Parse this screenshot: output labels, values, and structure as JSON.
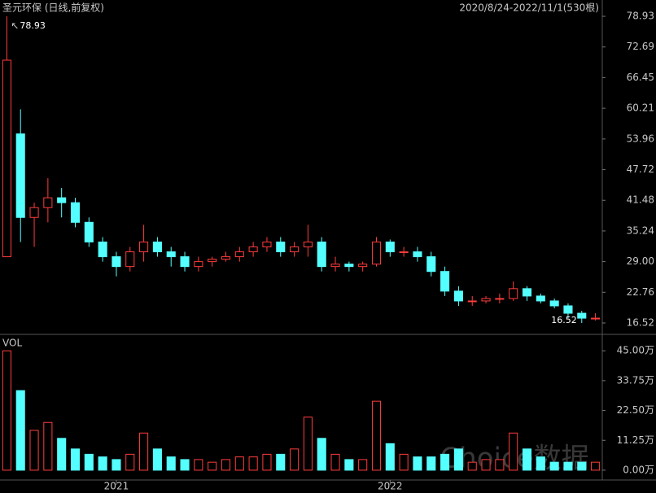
{
  "chart_data": [
    {
      "type": "candlestick",
      "title": "圣元环保 (日线,前复权)",
      "subtitle": "2020/8/24-2022/11/1(530根)",
      "up_color": "#ff3c3c",
      "down_color": "#54ffff",
      "categories": [
        null,
        null,
        null,
        null,
        null,
        null,
        null,
        null,
        "2021",
        null,
        null,
        null,
        null,
        null,
        null,
        null,
        null,
        null,
        null,
        null,
        null,
        null,
        null,
        null,
        null,
        null,
        null,
        null,
        "2022",
        null,
        null,
        null,
        null,
        null,
        null,
        null,
        null,
        null,
        null,
        null,
        null,
        null,
        null,
        null
      ],
      "open": [
        30,
        55,
        38,
        40,
        42,
        41,
        37,
        33,
        30,
        28,
        31,
        33,
        31,
        30,
        28,
        29,
        29.5,
        30,
        31,
        32,
        33,
        31,
        32,
        33,
        28,
        28.5,
        28,
        28.5,
        33,
        31,
        31,
        30,
        27,
        23,
        21,
        21,
        21.5,
        21.5,
        23.5,
        22,
        21,
        20,
        18.5,
        17.5
      ],
      "high": [
        78.93,
        60,
        41,
        46,
        44,
        42,
        38,
        34,
        31,
        32,
        36.5,
        34,
        32,
        31,
        30,
        30,
        31,
        32,
        33,
        34,
        34,
        33,
        36.5,
        34,
        30,
        29,
        29,
        34,
        33.5,
        32,
        32,
        31,
        28,
        24,
        22,
        22,
        22.5,
        25,
        24,
        22.5,
        21.5,
        20.5,
        19,
        18.5
      ],
      "low": [
        30,
        33,
        32,
        37,
        38,
        36,
        32,
        29,
        26,
        27,
        29,
        30,
        28,
        27,
        27,
        28,
        29,
        29,
        30,
        31,
        30,
        30,
        30,
        27,
        27,
        27,
        27,
        28,
        30,
        30,
        29,
        26,
        22,
        20,
        20,
        20.5,
        20.5,
        21,
        21,
        20.5,
        19.5,
        17.5,
        16.52,
        17
      ],
      "close": [
        70,
        38,
        40,
        42,
        41,
        37,
        33,
        30,
        28,
        31,
        33,
        31,
        30,
        28,
        29,
        29.5,
        30,
        31,
        32,
        33,
        31,
        32,
        33,
        28,
        28.5,
        28,
        28.5,
        33,
        31,
        31,
        30,
        27,
        23,
        21,
        21,
        21.5,
        21.5,
        23.5,
        22,
        21,
        20,
        18.5,
        17.5,
        17.5
      ],
      "ylim": [
        14.2,
        82.25
      ],
      "yticks": [
        78.93,
        72.69,
        66.45,
        60.21,
        53.96,
        47.72,
        41.48,
        35.24,
        {
          "value": 29,
          "label": "29.00"
        },
        22.76,
        16.52
      ]
    },
    {
      "type": "bar",
      "title": "VOL",
      "values": [
        45,
        30,
        15,
        18,
        12,
        8,
        6,
        5,
        4,
        6,
        14,
        8,
        5,
        4,
        4,
        3,
        4,
        5,
        5,
        6,
        6,
        8,
        20,
        12,
        6,
        4,
        4,
        26,
        10,
        6,
        5,
        5,
        6,
        8,
        3,
        4,
        4,
        14,
        8,
        5,
        3,
        3,
        3,
        3
      ],
      "ylim": [
        -3.7,
        51.2
      ],
      "yticks": [
        {
          "value": 45,
          "label": "45.00万"
        },
        {
          "value": 33.75,
          "label": "33.75万"
        },
        {
          "value": 22.5,
          "label": "22.50万"
        },
        {
          "value": 11.25,
          "label": "11.25万"
        },
        {
          "value": 0,
          "label": "0.00万"
        }
      ]
    }
  ],
  "watermark": "Choice数据"
}
